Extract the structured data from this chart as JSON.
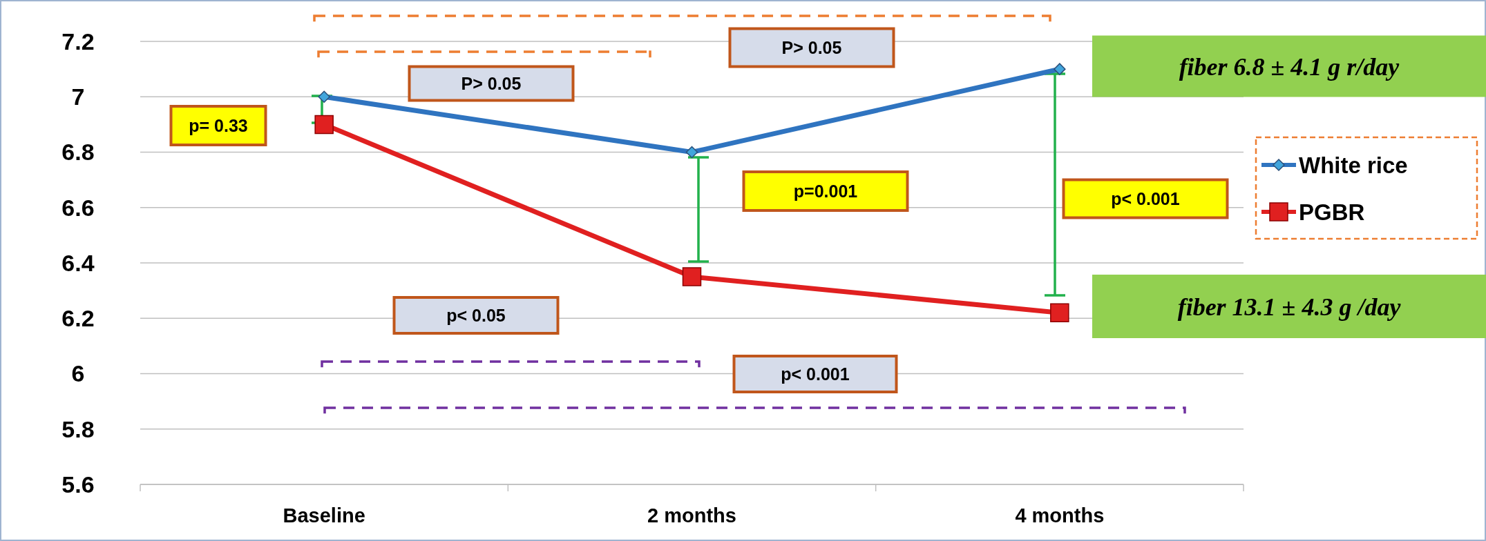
{
  "chart_data": {
    "type": "line",
    "categories": [
      "Baseline",
      "2 months",
      "4 months"
    ],
    "series": [
      {
        "name": "White rice",
        "color": "#2f74c0",
        "values": [
          7.0,
          6.8,
          7.1
        ],
        "marker": "diamond"
      },
      {
        "name": "PGBR",
        "color": "#e02020",
        "values": [
          6.9,
          6.35,
          6.22
        ],
        "marker": "square"
      }
    ],
    "ylim": [
      5.6,
      7.2
    ],
    "yticks": [
      5.6,
      5.8,
      6,
      6.2,
      6.4,
      6.6,
      6.8,
      7,
      7.2
    ],
    "grid": "y",
    "legend": "right",
    "annotations": [
      "p= 0.33",
      "P> 0.05",
      "P> 0.05",
      "p=0.001",
      "p< 0.001",
      "p< 0.05",
      "p< 0.001",
      "fiber 6.8 ± 4.1 g r/day",
      "fiber 13.1 ± 4.3 g /day"
    ]
  }
}
